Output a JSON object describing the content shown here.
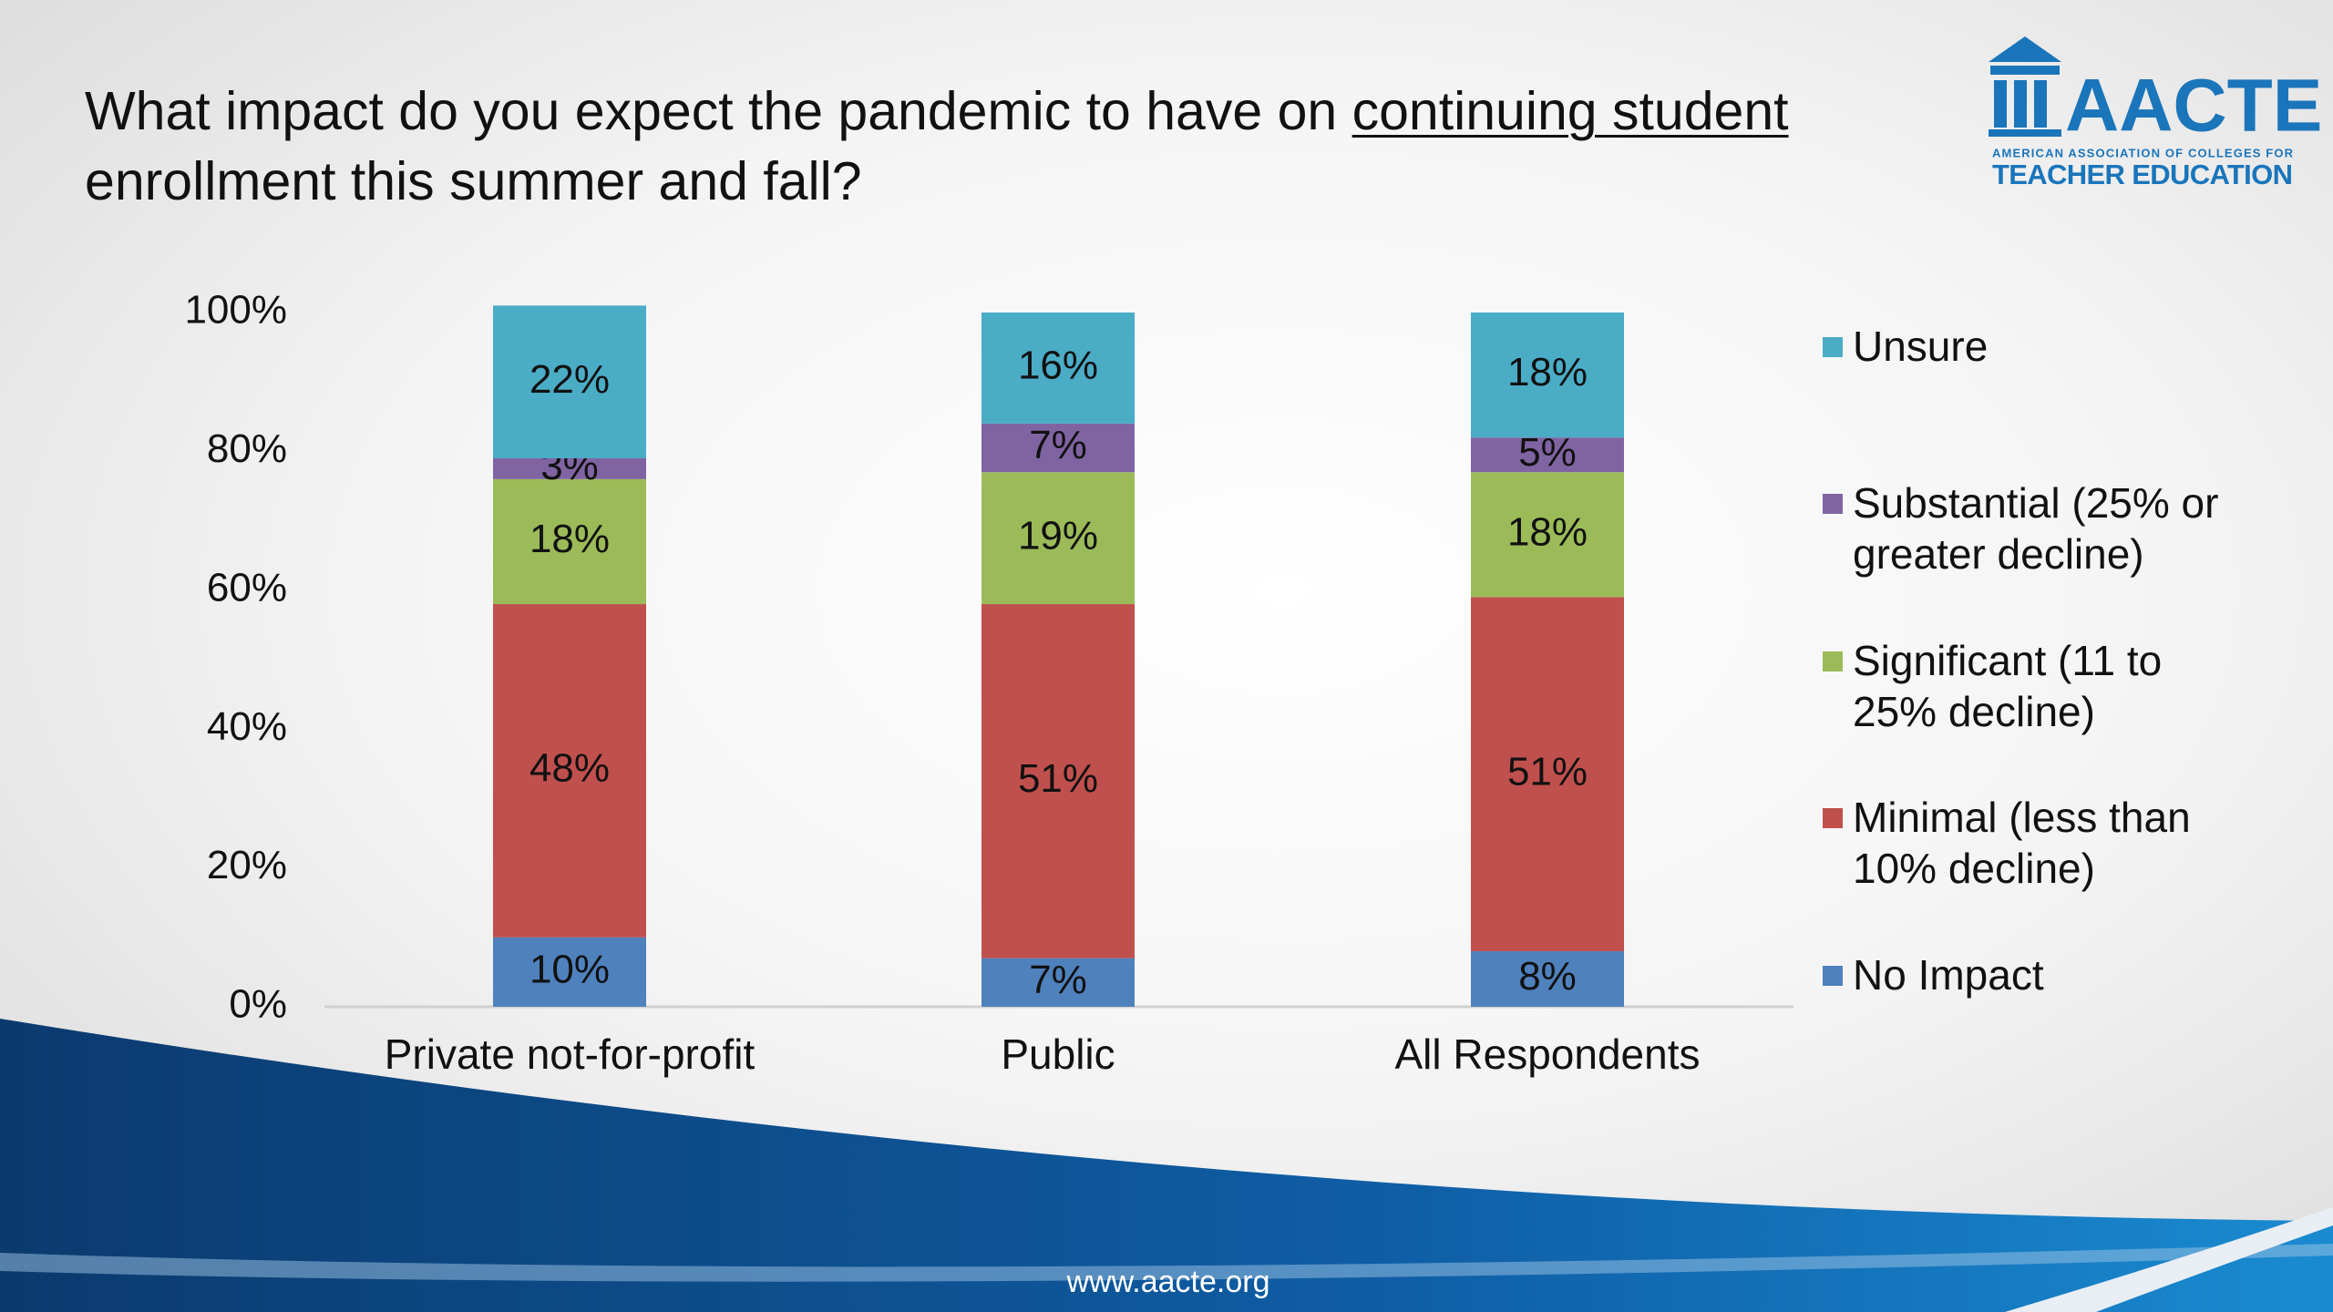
{
  "title": {
    "before": "What impact do you expect the pandemic to have on",
    "underlined": "continuing student",
    "after": "enrollment this summer and fall?"
  },
  "logo": {
    "name": "AACTE",
    "line1": "AMERICAN ASSOCIATION OF COLLEGES FOR",
    "line2": "TEACHER EDUCATION"
  },
  "footer": "www.aacte.org",
  "chart_data": {
    "type": "stacked_bar",
    "categories": [
      "Private not-for-profit",
      "Public",
      "All Respondents"
    ],
    "series": [
      {
        "name": "No Impact",
        "color": "#4f81bd",
        "values": [
          10,
          7,
          8
        ],
        "value_labels": [
          "10%",
          "7%",
          "8%"
        ]
      },
      {
        "name": "Minimal (less than 10% decline)",
        "color": "#c0504d",
        "values": [
          48,
          51,
          51
        ],
        "value_labels": [
          "48%",
          "51%",
          "51%"
        ]
      },
      {
        "name": "Significant (11 to 25% decline)",
        "color": "#9bbb59",
        "values": [
          18,
          19,
          18
        ],
        "value_labels": [
          "18%",
          "19%",
          "18%"
        ]
      },
      {
        "name": "Substantial (25% or greater decline)",
        "color": "#8064a2",
        "values": [
          3,
          7,
          5
        ],
        "value_labels": [
          "3%",
          "7%",
          "5%"
        ]
      },
      {
        "name": "Unsure",
        "color": "#4bacc6",
        "values": [
          22,
          16,
          18
        ],
        "value_labels": [
          "22%",
          "16%",
          "18%"
        ]
      }
    ],
    "ylim": [
      0,
      100
    ],
    "yticks": [
      {
        "value": 0,
        "label": "0%"
      },
      {
        "value": 20,
        "label": "20%"
      },
      {
        "value": 40,
        "label": "40%"
      },
      {
        "value": 60,
        "label": "60%"
      },
      {
        "value": 80,
        "label": "80%"
      },
      {
        "value": 100,
        "label": "100%"
      }
    ],
    "grid": false,
    "legend": "right"
  }
}
